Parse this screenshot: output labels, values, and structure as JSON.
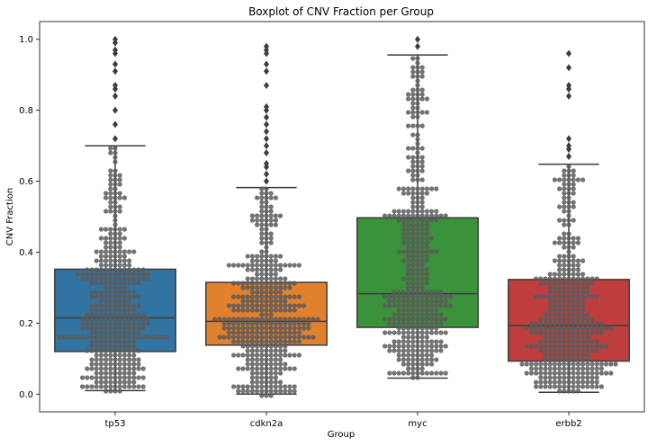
{
  "chart_data": {
    "type": "box",
    "title": "Boxplot of CNV Fraction per Group",
    "xlabel": "Group",
    "ylabel": "CNV Fraction",
    "ylim": [
      -0.05,
      1.05
    ],
    "yticks": [
      "0.0",
      "0.2",
      "0.4",
      "0.6",
      "0.8",
      "1.0"
    ],
    "categories": [
      "tp53",
      "cdkn2a",
      "myc",
      "erbb2"
    ],
    "colors": [
      "#3274a1",
      "#e1812c",
      "#3a923a",
      "#c03d3e"
    ],
    "boxes": [
      {
        "name": "tp53",
        "whisker_low": 0.01,
        "q1": 0.12,
        "median": 0.215,
        "q3": 0.352,
        "whisker_high": 0.7,
        "outliers": [
          0.72,
          0.76,
          0.8,
          0.84,
          0.86,
          0.87,
          0.91,
          0.93,
          0.96,
          0.97,
          0.99,
          1.0
        ]
      },
      {
        "name": "cdkn2a",
        "whisker_low": 0.0,
        "q1": 0.138,
        "median": 0.205,
        "q3": 0.315,
        "whisker_high": 0.582,
        "outliers": [
          0.6,
          0.62,
          0.64,
          0.65,
          0.68,
          0.7,
          0.72,
          0.74,
          0.76,
          0.78,
          0.8,
          0.81,
          0.87,
          0.91,
          0.93,
          0.96,
          0.97,
          0.98
        ]
      },
      {
        "name": "myc",
        "whisker_low": 0.045,
        "q1": 0.188,
        "median": 0.283,
        "q3": 0.497,
        "whisker_high": 0.956,
        "outliers": [
          0.98,
          1.0
        ]
      },
      {
        "name": "erbb2",
        "whisker_low": 0.005,
        "q1": 0.093,
        "median": 0.193,
        "q3": 0.323,
        "whisker_high": 0.648,
        "outliers": [
          0.67,
          0.69,
          0.7,
          0.72,
          0.84,
          0.86,
          0.87,
          0.92,
          0.96
        ]
      }
    ],
    "swarm_color": "#5a5a5a",
    "grid": false,
    "legend": "none"
  }
}
